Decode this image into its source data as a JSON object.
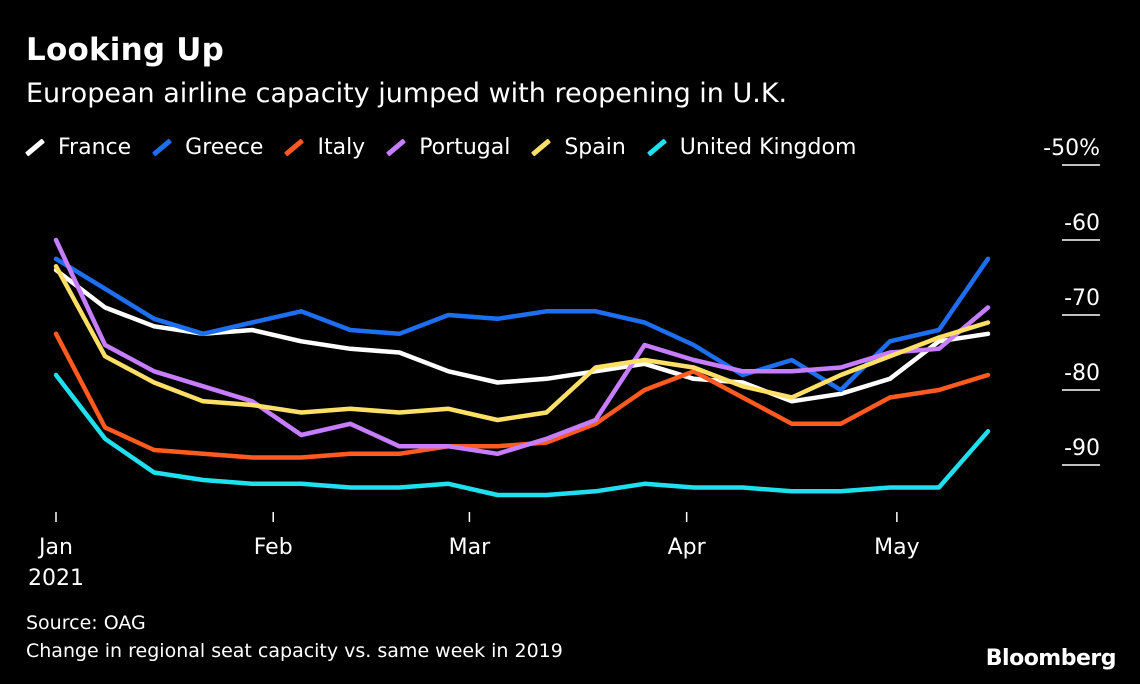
{
  "header": {
    "title": "Looking Up",
    "subtitle": "European airline capacity jumped with reopening in U.K."
  },
  "footer": {
    "source": "Source: OAG",
    "note": "Change in regional seat capacity vs. same week in 2019",
    "brand": "Bloomberg"
  },
  "chart_data": {
    "type": "line",
    "title": "Looking Up",
    "subtitle": "European airline capacity jumped with reopening in U.K.",
    "xlabel": "",
    "ylabel": "",
    "x_ticks": [
      {
        "label": "Jan",
        "sublabel": "2021",
        "date": "2021-01-01"
      },
      {
        "label": "Feb",
        "sublabel": "",
        "date": "2021-02-01"
      },
      {
        "label": "Mar",
        "sublabel": "",
        "date": "2021-03-01"
      },
      {
        "label": "Apr",
        "sublabel": "",
        "date": "2021-04-01"
      },
      {
        "label": "May",
        "sublabel": "",
        "date": "2021-05-01"
      }
    ],
    "y_ticks": [
      {
        "value": -50,
        "label": "-50%"
      },
      {
        "value": -60,
        "label": "-60"
      },
      {
        "value": -70,
        "label": "-70"
      },
      {
        "value": -80,
        "label": "-80"
      },
      {
        "value": -90,
        "label": "-90"
      }
    ],
    "ylim": [
      -96,
      -46
    ],
    "xlim": [
      "2021-01-01",
      "2021-05-20"
    ],
    "x": [
      "2021-01-01",
      "2021-01-08",
      "2021-01-15",
      "2021-01-22",
      "2021-01-29",
      "2021-02-05",
      "2021-02-12",
      "2021-02-19",
      "2021-02-26",
      "2021-03-05",
      "2021-03-12",
      "2021-03-19",
      "2021-03-26",
      "2021-04-02",
      "2021-04-09",
      "2021-04-16",
      "2021-04-23",
      "2021-04-30",
      "2021-05-07",
      "2021-05-14"
    ],
    "legend_position": "top-left",
    "grid": false,
    "series": [
      {
        "name": "France",
        "color": "#ffffff",
        "values": [
          -64,
          -69,
          -71.5,
          -72.5,
          -72,
          -73.5,
          -74.5,
          -75,
          -77.5,
          -79,
          -78.5,
          -77.5,
          -76.5,
          -78.5,
          -79,
          -81.5,
          -80.5,
          -78.5,
          -73.5,
          -72.5
        ]
      },
      {
        "name": "Greece",
        "color": "#1e6ff0",
        "values": [
          -62.5,
          -66.5,
          -70.5,
          -72.5,
          -71,
          -69.5,
          -72,
          -72.5,
          -70,
          -70.5,
          -69.5,
          -69.5,
          -71,
          -74,
          -78,
          -76,
          -80,
          -73.5,
          -72,
          -62.5
        ]
      },
      {
        "name": "Italy",
        "color": "#ff5a1f",
        "values": [
          -72.5,
          -85,
          -88,
          -88.5,
          -89,
          -89,
          -88.5,
          -88.5,
          -87.5,
          -87.5,
          -87,
          -84.5,
          -80,
          -77.5,
          -81,
          -84.5,
          -84.5,
          -81,
          -80,
          -78
        ]
      },
      {
        "name": "Portugal",
        "color": "#c77dff",
        "values": [
          -60,
          -74,
          -77.5,
          -79.5,
          -81.5,
          -86,
          -84.5,
          -87.5,
          -87.5,
          -88.5,
          -86.5,
          -84,
          -74,
          -76,
          -77.5,
          -77.5,
          -77,
          -75,
          -74.5,
          -69
        ]
      },
      {
        "name": "Spain",
        "color": "#ffe066",
        "values": [
          -63.5,
          -75.5,
          -79,
          -81.5,
          -82,
          -83,
          -82.5,
          -83,
          -82.5,
          -84,
          -83,
          -77,
          -76,
          -77,
          -79.5,
          -81,
          -78,
          -75.5,
          -73,
          -71
        ]
      },
      {
        "name": "United Kingdom",
        "color": "#1fe0ef",
        "values": [
          -78,
          -86.5,
          -91,
          -92,
          -92.5,
          -92.5,
          -93,
          -93,
          -92.5,
          -94,
          -94,
          -93.5,
          -92.5,
          -93,
          -93,
          -93.5,
          -93.5,
          -93,
          -93,
          -85.5
        ]
      }
    ]
  }
}
